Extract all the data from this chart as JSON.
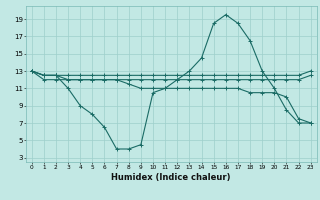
{
  "xlabel": "Humidex (Indice chaleur)",
  "bg_color": "#c2e8e4",
  "grid_color": "#9ecfcb",
  "line_color": "#1a6b65",
  "xlim": [
    -0.5,
    23.5
  ],
  "ylim": [
    2.5,
    20.5
  ],
  "xticks": [
    0,
    1,
    2,
    3,
    4,
    5,
    6,
    7,
    8,
    9,
    10,
    11,
    12,
    13,
    14,
    15,
    16,
    17,
    18,
    19,
    20,
    21,
    22,
    23
  ],
  "yticks": [
    3,
    5,
    7,
    9,
    11,
    13,
    15,
    17,
    19
  ],
  "lines": [
    {
      "x": [
        0,
        1,
        2,
        3,
        4,
        5,
        6,
        7,
        8,
        9,
        10,
        11,
        12,
        13,
        14,
        15,
        16,
        17,
        18,
        19,
        20,
        21,
        22,
        23
      ],
      "y": [
        13,
        12.5,
        12.5,
        12.5,
        12.5,
        12.5,
        12.5,
        12.5,
        12.5,
        12.5,
        12.5,
        12.5,
        12.5,
        12.5,
        12.5,
        12.5,
        12.5,
        12.5,
        12.5,
        12.5,
        12.5,
        12.5,
        12.5,
        13
      ]
    },
    {
      "x": [
        0,
        1,
        2,
        3,
        4,
        5,
        6,
        7,
        8,
        9,
        10,
        11,
        12,
        13,
        14,
        15,
        16,
        17,
        18,
        19,
        20,
        21,
        22,
        23
      ],
      "y": [
        13,
        12,
        12,
        12,
        12,
        12,
        12,
        12,
        12,
        12,
        12,
        12,
        12,
        12,
        12,
        12,
        12,
        12,
        12,
        12,
        12,
        12,
        12,
        12.5
      ]
    },
    {
      "x": [
        0,
        1,
        2,
        3,
        4,
        5,
        6,
        7,
        8,
        9,
        10,
        11,
        12,
        13,
        14,
        15,
        16,
        17,
        18,
        19,
        20,
        21,
        22,
        23
      ],
      "y": [
        13,
        12.5,
        12.5,
        11,
        9,
        8,
        6.5,
        4,
        4,
        4.5,
        10.5,
        11,
        12,
        13,
        14.5,
        18.5,
        19.5,
        18.5,
        16.5,
        13,
        11,
        8.5,
        7,
        7
      ]
    },
    {
      "x": [
        0,
        1,
        2,
        3,
        4,
        5,
        6,
        7,
        8,
        9,
        10,
        11,
        12,
        13,
        14,
        15,
        16,
        17,
        18,
        19,
        20,
        21,
        22,
        23
      ],
      "y": [
        13,
        12.5,
        12.5,
        12,
        12,
        12,
        12,
        12,
        11.5,
        11,
        11,
        11,
        11,
        11,
        11,
        11,
        11,
        11,
        10.5,
        10.5,
        10.5,
        10,
        7.5,
        7
      ]
    }
  ]
}
